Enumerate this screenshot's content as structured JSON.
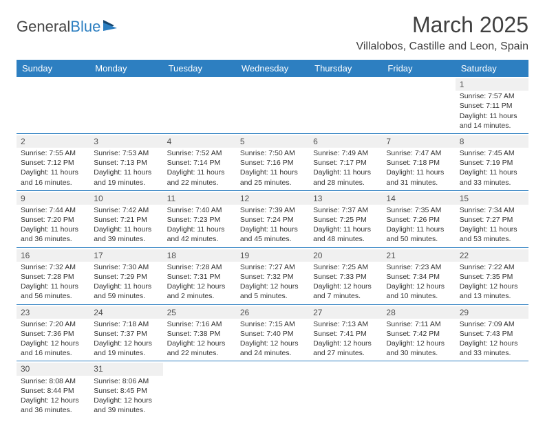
{
  "logo": {
    "text_a": "General",
    "text_b": "Blue"
  },
  "title": "March 2025",
  "location": "Villalobos, Castille and Leon, Spain",
  "day_headers": [
    "Sunday",
    "Monday",
    "Tuesday",
    "Wednesday",
    "Thursday",
    "Friday",
    "Saturday"
  ],
  "colors": {
    "header_bg": "#2d7fc1",
    "header_fg": "#ffffff",
    "rule": "#2d7fc1",
    "daynum_bg": "#f0f0f0",
    "text": "#333333",
    "title_color": "#404040"
  },
  "weeks": [
    [
      null,
      null,
      null,
      null,
      null,
      null,
      {
        "n": "1",
        "sunrise": "Sunrise: 7:57 AM",
        "sunset": "Sunset: 7:11 PM",
        "day1": "Daylight: 11 hours",
        "day2": "and 14 minutes."
      }
    ],
    [
      {
        "n": "2",
        "sunrise": "Sunrise: 7:55 AM",
        "sunset": "Sunset: 7:12 PM",
        "day1": "Daylight: 11 hours",
        "day2": "and 16 minutes."
      },
      {
        "n": "3",
        "sunrise": "Sunrise: 7:53 AM",
        "sunset": "Sunset: 7:13 PM",
        "day1": "Daylight: 11 hours",
        "day2": "and 19 minutes."
      },
      {
        "n": "4",
        "sunrise": "Sunrise: 7:52 AM",
        "sunset": "Sunset: 7:14 PM",
        "day1": "Daylight: 11 hours",
        "day2": "and 22 minutes."
      },
      {
        "n": "5",
        "sunrise": "Sunrise: 7:50 AM",
        "sunset": "Sunset: 7:16 PM",
        "day1": "Daylight: 11 hours",
        "day2": "and 25 minutes."
      },
      {
        "n": "6",
        "sunrise": "Sunrise: 7:49 AM",
        "sunset": "Sunset: 7:17 PM",
        "day1": "Daylight: 11 hours",
        "day2": "and 28 minutes."
      },
      {
        "n": "7",
        "sunrise": "Sunrise: 7:47 AM",
        "sunset": "Sunset: 7:18 PM",
        "day1": "Daylight: 11 hours",
        "day2": "and 31 minutes."
      },
      {
        "n": "8",
        "sunrise": "Sunrise: 7:45 AM",
        "sunset": "Sunset: 7:19 PM",
        "day1": "Daylight: 11 hours",
        "day2": "and 33 minutes."
      }
    ],
    [
      {
        "n": "9",
        "sunrise": "Sunrise: 7:44 AM",
        "sunset": "Sunset: 7:20 PM",
        "day1": "Daylight: 11 hours",
        "day2": "and 36 minutes."
      },
      {
        "n": "10",
        "sunrise": "Sunrise: 7:42 AM",
        "sunset": "Sunset: 7:21 PM",
        "day1": "Daylight: 11 hours",
        "day2": "and 39 minutes."
      },
      {
        "n": "11",
        "sunrise": "Sunrise: 7:40 AM",
        "sunset": "Sunset: 7:23 PM",
        "day1": "Daylight: 11 hours",
        "day2": "and 42 minutes."
      },
      {
        "n": "12",
        "sunrise": "Sunrise: 7:39 AM",
        "sunset": "Sunset: 7:24 PM",
        "day1": "Daylight: 11 hours",
        "day2": "and 45 minutes."
      },
      {
        "n": "13",
        "sunrise": "Sunrise: 7:37 AM",
        "sunset": "Sunset: 7:25 PM",
        "day1": "Daylight: 11 hours",
        "day2": "and 48 minutes."
      },
      {
        "n": "14",
        "sunrise": "Sunrise: 7:35 AM",
        "sunset": "Sunset: 7:26 PM",
        "day1": "Daylight: 11 hours",
        "day2": "and 50 minutes."
      },
      {
        "n": "15",
        "sunrise": "Sunrise: 7:34 AM",
        "sunset": "Sunset: 7:27 PM",
        "day1": "Daylight: 11 hours",
        "day2": "and 53 minutes."
      }
    ],
    [
      {
        "n": "16",
        "sunrise": "Sunrise: 7:32 AM",
        "sunset": "Sunset: 7:28 PM",
        "day1": "Daylight: 11 hours",
        "day2": "and 56 minutes."
      },
      {
        "n": "17",
        "sunrise": "Sunrise: 7:30 AM",
        "sunset": "Sunset: 7:29 PM",
        "day1": "Daylight: 11 hours",
        "day2": "and 59 minutes."
      },
      {
        "n": "18",
        "sunrise": "Sunrise: 7:28 AM",
        "sunset": "Sunset: 7:31 PM",
        "day1": "Daylight: 12 hours",
        "day2": "and 2 minutes."
      },
      {
        "n": "19",
        "sunrise": "Sunrise: 7:27 AM",
        "sunset": "Sunset: 7:32 PM",
        "day1": "Daylight: 12 hours",
        "day2": "and 5 minutes."
      },
      {
        "n": "20",
        "sunrise": "Sunrise: 7:25 AM",
        "sunset": "Sunset: 7:33 PM",
        "day1": "Daylight: 12 hours",
        "day2": "and 7 minutes."
      },
      {
        "n": "21",
        "sunrise": "Sunrise: 7:23 AM",
        "sunset": "Sunset: 7:34 PM",
        "day1": "Daylight: 12 hours",
        "day2": "and 10 minutes."
      },
      {
        "n": "22",
        "sunrise": "Sunrise: 7:22 AM",
        "sunset": "Sunset: 7:35 PM",
        "day1": "Daylight: 12 hours",
        "day2": "and 13 minutes."
      }
    ],
    [
      {
        "n": "23",
        "sunrise": "Sunrise: 7:20 AM",
        "sunset": "Sunset: 7:36 PM",
        "day1": "Daylight: 12 hours",
        "day2": "and 16 minutes."
      },
      {
        "n": "24",
        "sunrise": "Sunrise: 7:18 AM",
        "sunset": "Sunset: 7:37 PM",
        "day1": "Daylight: 12 hours",
        "day2": "and 19 minutes."
      },
      {
        "n": "25",
        "sunrise": "Sunrise: 7:16 AM",
        "sunset": "Sunset: 7:38 PM",
        "day1": "Daylight: 12 hours",
        "day2": "and 22 minutes."
      },
      {
        "n": "26",
        "sunrise": "Sunrise: 7:15 AM",
        "sunset": "Sunset: 7:40 PM",
        "day1": "Daylight: 12 hours",
        "day2": "and 24 minutes."
      },
      {
        "n": "27",
        "sunrise": "Sunrise: 7:13 AM",
        "sunset": "Sunset: 7:41 PM",
        "day1": "Daylight: 12 hours",
        "day2": "and 27 minutes."
      },
      {
        "n": "28",
        "sunrise": "Sunrise: 7:11 AM",
        "sunset": "Sunset: 7:42 PM",
        "day1": "Daylight: 12 hours",
        "day2": "and 30 minutes."
      },
      {
        "n": "29",
        "sunrise": "Sunrise: 7:09 AM",
        "sunset": "Sunset: 7:43 PM",
        "day1": "Daylight: 12 hours",
        "day2": "and 33 minutes."
      }
    ],
    [
      {
        "n": "30",
        "sunrise": "Sunrise: 8:08 AM",
        "sunset": "Sunset: 8:44 PM",
        "day1": "Daylight: 12 hours",
        "day2": "and 36 minutes."
      },
      {
        "n": "31",
        "sunrise": "Sunrise: 8:06 AM",
        "sunset": "Sunset: 8:45 PM",
        "day1": "Daylight: 12 hours",
        "day2": "and 39 minutes."
      },
      null,
      null,
      null,
      null,
      null
    ]
  ]
}
